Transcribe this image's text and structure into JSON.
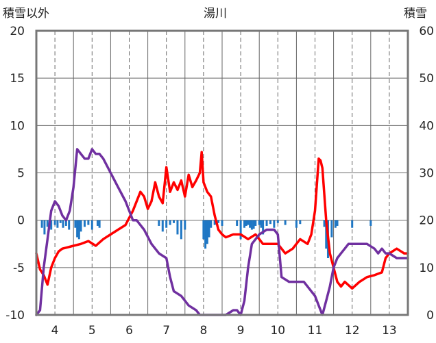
{
  "chart_data": {
    "type": "line",
    "title": "湯川",
    "left_axis_label": "積雪以外",
    "right_axis_label": "積雪",
    "ylim_left": [
      -10,
      20
    ],
    "ylim_right": [
      0,
      60
    ],
    "y_ticks_left": [
      20,
      15,
      10,
      5,
      0,
      -5,
      -10
    ],
    "y_ticks_right": [
      60,
      50,
      40,
      30,
      20,
      10,
      0
    ],
    "xlim": [
      3.5,
      13.5
    ],
    "x_ticks": [
      4,
      5,
      6,
      7,
      8,
      9,
      10,
      11,
      12,
      13
    ],
    "x_tick_labels": [
      "4",
      "5",
      "6",
      "7",
      "8",
      "9",
      "10",
      "11",
      "12",
      "13"
    ],
    "grid": true,
    "series": [
      {
        "color": "#ff0000",
        "axis": "left",
        "x": [
          3.5,
          3.6,
          3.7,
          3.8,
          3.9,
          4.0,
          4.1,
          4.2,
          4.3,
          4.5,
          4.7,
          4.9,
          5.1,
          5.3,
          5.5,
          5.7,
          5.9,
          6.1,
          6.3,
          6.4,
          6.5,
          6.6,
          6.7,
          6.8,
          6.9,
          7.0,
          7.1,
          7.2,
          7.3,
          7.4,
          7.5,
          7.6,
          7.7,
          7.8,
          7.9,
          7.95,
          8.0,
          8.1,
          8.2,
          8.3,
          8.4,
          8.5,
          8.6,
          8.8,
          9.0,
          9.2,
          9.4,
          9.6,
          9.8,
          10.0,
          10.2,
          10.4,
          10.6,
          10.8,
          10.9,
          11.0,
          11.1,
          11.15,
          11.2,
          11.3,
          11.4,
          11.5,
          11.6,
          11.7,
          11.8,
          12.0,
          12.2,
          12.4,
          12.6,
          12.8,
          12.9,
          13.0,
          13.2,
          13.4,
          13.5
        ],
        "y": [
          -3.5,
          -5.2,
          -5.8,
          -6.8,
          -5.0,
          -4.0,
          -3.3,
          -3.0,
          -2.9,
          -2.7,
          -2.5,
          -2.2,
          -2.7,
          -2.0,
          -1.5,
          -1.0,
          -0.5,
          1.0,
          3.0,
          2.5,
          1.2,
          2.0,
          4.0,
          2.5,
          1.8,
          5.6,
          3.0,
          4.0,
          3.2,
          4.2,
          2.5,
          4.8,
          3.5,
          4.2,
          5.0,
          7.2,
          4.0,
          3.0,
          2.5,
          0.5,
          -1.0,
          -1.5,
          -1.8,
          -1.5,
          -1.5,
          -2.0,
          -1.5,
          -2.5,
          -2.5,
          -2.5,
          -3.5,
          -3.0,
          -2.0,
          -2.5,
          -1.5,
          1.0,
          6.5,
          6.3,
          5.5,
          0.0,
          -3.5,
          -5.0,
          -6.5,
          -7.0,
          -6.5,
          -7.2,
          -6.5,
          -6.0,
          -5.8,
          -5.5,
          -4.0,
          -3.5,
          -3.0,
          -3.5,
          -3.5
        ]
      },
      {
        "color": "#7030a0",
        "axis": "right",
        "x": [
          3.5,
          3.6,
          3.7,
          3.8,
          3.9,
          4.0,
          4.1,
          4.2,
          4.3,
          4.4,
          4.5,
          4.6,
          4.7,
          4.8,
          4.9,
          5.0,
          5.1,
          5.2,
          5.3,
          5.5,
          5.7,
          5.9,
          6.0,
          6.1,
          6.2,
          6.4,
          6.6,
          6.8,
          7.0,
          7.1,
          7.2,
          7.4,
          7.6,
          7.8,
          7.9,
          8.0,
          8.2,
          8.4,
          8.6,
          8.8,
          8.9,
          9.0,
          9.1,
          9.2,
          9.3,
          9.5,
          9.7,
          9.9,
          10.0,
          10.1,
          10.3,
          10.5,
          10.7,
          10.9,
          11.0,
          11.1,
          11.2,
          11.3,
          11.4,
          11.5,
          11.6,
          11.7,
          11.8,
          11.9,
          12.0,
          12.2,
          12.4,
          12.6,
          12.7,
          12.8,
          12.9,
          13.0,
          13.2,
          13.4,
          13.5
        ],
        "y": [
          0,
          1,
          10,
          16,
          22,
          24,
          23,
          21,
          20,
          22,
          27,
          35,
          34,
          33,
          33,
          35,
          34,
          34,
          33,
          30,
          27,
          24,
          22,
          20,
          20,
          18,
          15,
          13,
          12,
          8,
          5,
          4,
          2,
          1,
          0,
          0,
          0,
          0,
          0,
          1,
          1,
          0,
          3,
          10,
          15,
          17,
          18,
          18,
          17,
          8,
          7,
          7,
          7,
          5,
          4,
          2,
          0,
          3,
          6,
          10,
          12,
          13,
          14,
          15,
          15,
          15,
          15,
          14,
          13,
          14,
          13,
          13,
          12,
          12,
          12
        ]
      }
    ],
    "bars": {
      "color": "#1f77c4",
      "axis": "left",
      "x": [
        3.65,
        3.72,
        3.8,
        3.9,
        4.0,
        4.07,
        4.15,
        4.22,
        4.3,
        4.38,
        4.55,
        4.6,
        4.65,
        4.7,
        4.8,
        4.9,
        5.0,
        5.15,
        5.2,
        6.8,
        6.9,
        7.0,
        7.1,
        7.2,
        7.3,
        7.4,
        7.5,
        8.0,
        8.05,
        8.1,
        8.15,
        8.2,
        8.3,
        8.4,
        8.5,
        8.9,
        9.0,
        9.1,
        9.15,
        9.2,
        9.25,
        9.3,
        9.35,
        9.4,
        9.5,
        9.55,
        9.6,
        9.7,
        9.8,
        9.9,
        10.0,
        10.2,
        10.5,
        10.6,
        11.25,
        11.3,
        11.35,
        11.45,
        11.55,
        11.6,
        12.0,
        12.5
      ],
      "values": [
        -0.8,
        -1.5,
        -0.7,
        -1.0,
        -0.5,
        -0.8,
        -0.3,
        -0.8,
        -0.6,
        -1.0,
        -0.8,
        -1.8,
        -2.0,
        -1.2,
        -0.7,
        -0.5,
        -1.0,
        -0.6,
        -0.8,
        -0.6,
        -1.2,
        -0.8,
        -0.5,
        -0.3,
        -1.5,
        -2.0,
        -1.0,
        -2.0,
        -3.0,
        -2.5,
        -1.8,
        -0.8,
        -0.5,
        -0.3,
        -0.6,
        -0.6,
        -2.0,
        -0.8,
        -0.6,
        -0.5,
        -0.8,
        -1.0,
        -0.9,
        -0.6,
        -0.5,
        -0.8,
        -1.5,
        -0.6,
        -0.4,
        -0.8,
        -0.3,
        -0.5,
        -0.8,
        -0.4,
        -0.7,
        -3.0,
        -4.0,
        -1.8,
        -0.8,
        -0.6,
        -0.8,
        -0.6
      ]
    }
  }
}
